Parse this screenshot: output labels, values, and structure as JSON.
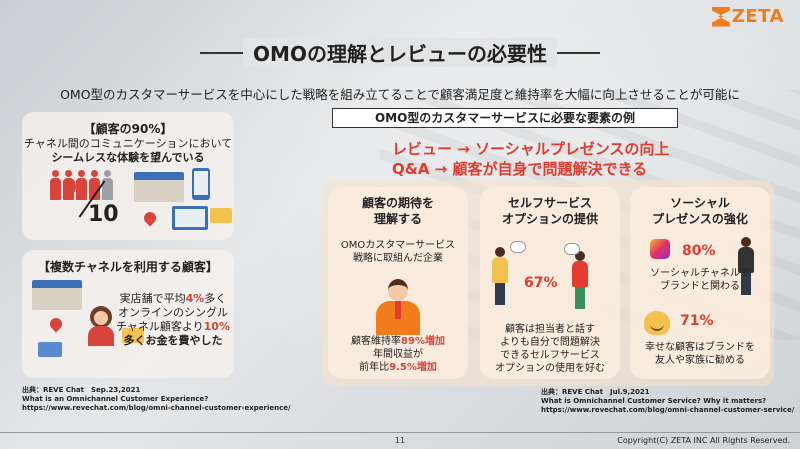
{
  "brand": {
    "logo_text": "ZETA",
    "accent": "#f07c1c",
    "highlight": "#e33b2e"
  },
  "title": "OMOの理解とレビューの必要性",
  "subtitle": "OMO型のカスタマーサービスを中心にした戦略を組み立てることで顧客満足度と維持率を大幅に向上させることが可能に",
  "left_panels": [
    {
      "heading": "【顧客の90%】",
      "lines": [
        "チャネル間のコミュニケーションにおいて",
        "シームレスな体験を望んでいる"
      ],
      "ratio_num": "9",
      "ratio_den": "10"
    },
    {
      "heading": "【複数チャネルを利用する顧客】",
      "l1a": "実店舗で平均",
      "l1b": "4%",
      "l1c": "多く",
      "l2": "オンラインのシングル",
      "l3a": "チャネル顧客より",
      "l3b": "10%",
      "l4": "多くお金を費やした"
    }
  ],
  "example_box_title": "OMO型のカスタマーサービスに必要な要素の例",
  "red_lines": [
    "レビュー → ソーシャルプレゼンスの向上",
    "Q&A → 顧客が自身で問題解決できる"
  ],
  "features": [
    {
      "head": [
        "顧客の期待を",
        "理解する"
      ],
      "intro": [
        "OMOカスタマーサービス",
        "戦略に取組んだ企業"
      ],
      "stat1a": "顧客維持率",
      "stat1b": "89%増加",
      "stat2": "年間収益が",
      "stat3a": "前年比",
      "stat3b": "9.5%増加"
    },
    {
      "head": [
        "セルフサービス",
        "オプションの提供"
      ],
      "percent": "67%",
      "text": [
        "顧客は担当者と話す",
        "よりも自分で問題解決",
        "できるセルフサービス",
        "オプションの使用を好む"
      ]
    },
    {
      "head": [
        "ソーシャル",
        "プレゼンスの強化"
      ],
      "percent1": "80%",
      "text1": [
        "ソーシャルチャネルで",
        "ブランドと関わる"
      ],
      "percent2": "71%",
      "text2": [
        "幸せな顧客はブランドを",
        "友人や家族に勧める"
      ]
    }
  ],
  "sources": [
    [
      "出典：REVE Chat　Sep.23,2021",
      "What is an Omnichannel Customer Experience?",
      "https://www.revechat.com/blog/omni-channel-customer-experience/"
    ],
    [
      "出典：REVE Chat　Jul.9,2021",
      "What is Omnichannel Customer Service? Why it matters?",
      "https://www.revechat.com/blog/omni-channel-customer-service/"
    ]
  ],
  "page_number": "11",
  "copyright": "Copyright(C) ZETA INC All Rights Reserved."
}
